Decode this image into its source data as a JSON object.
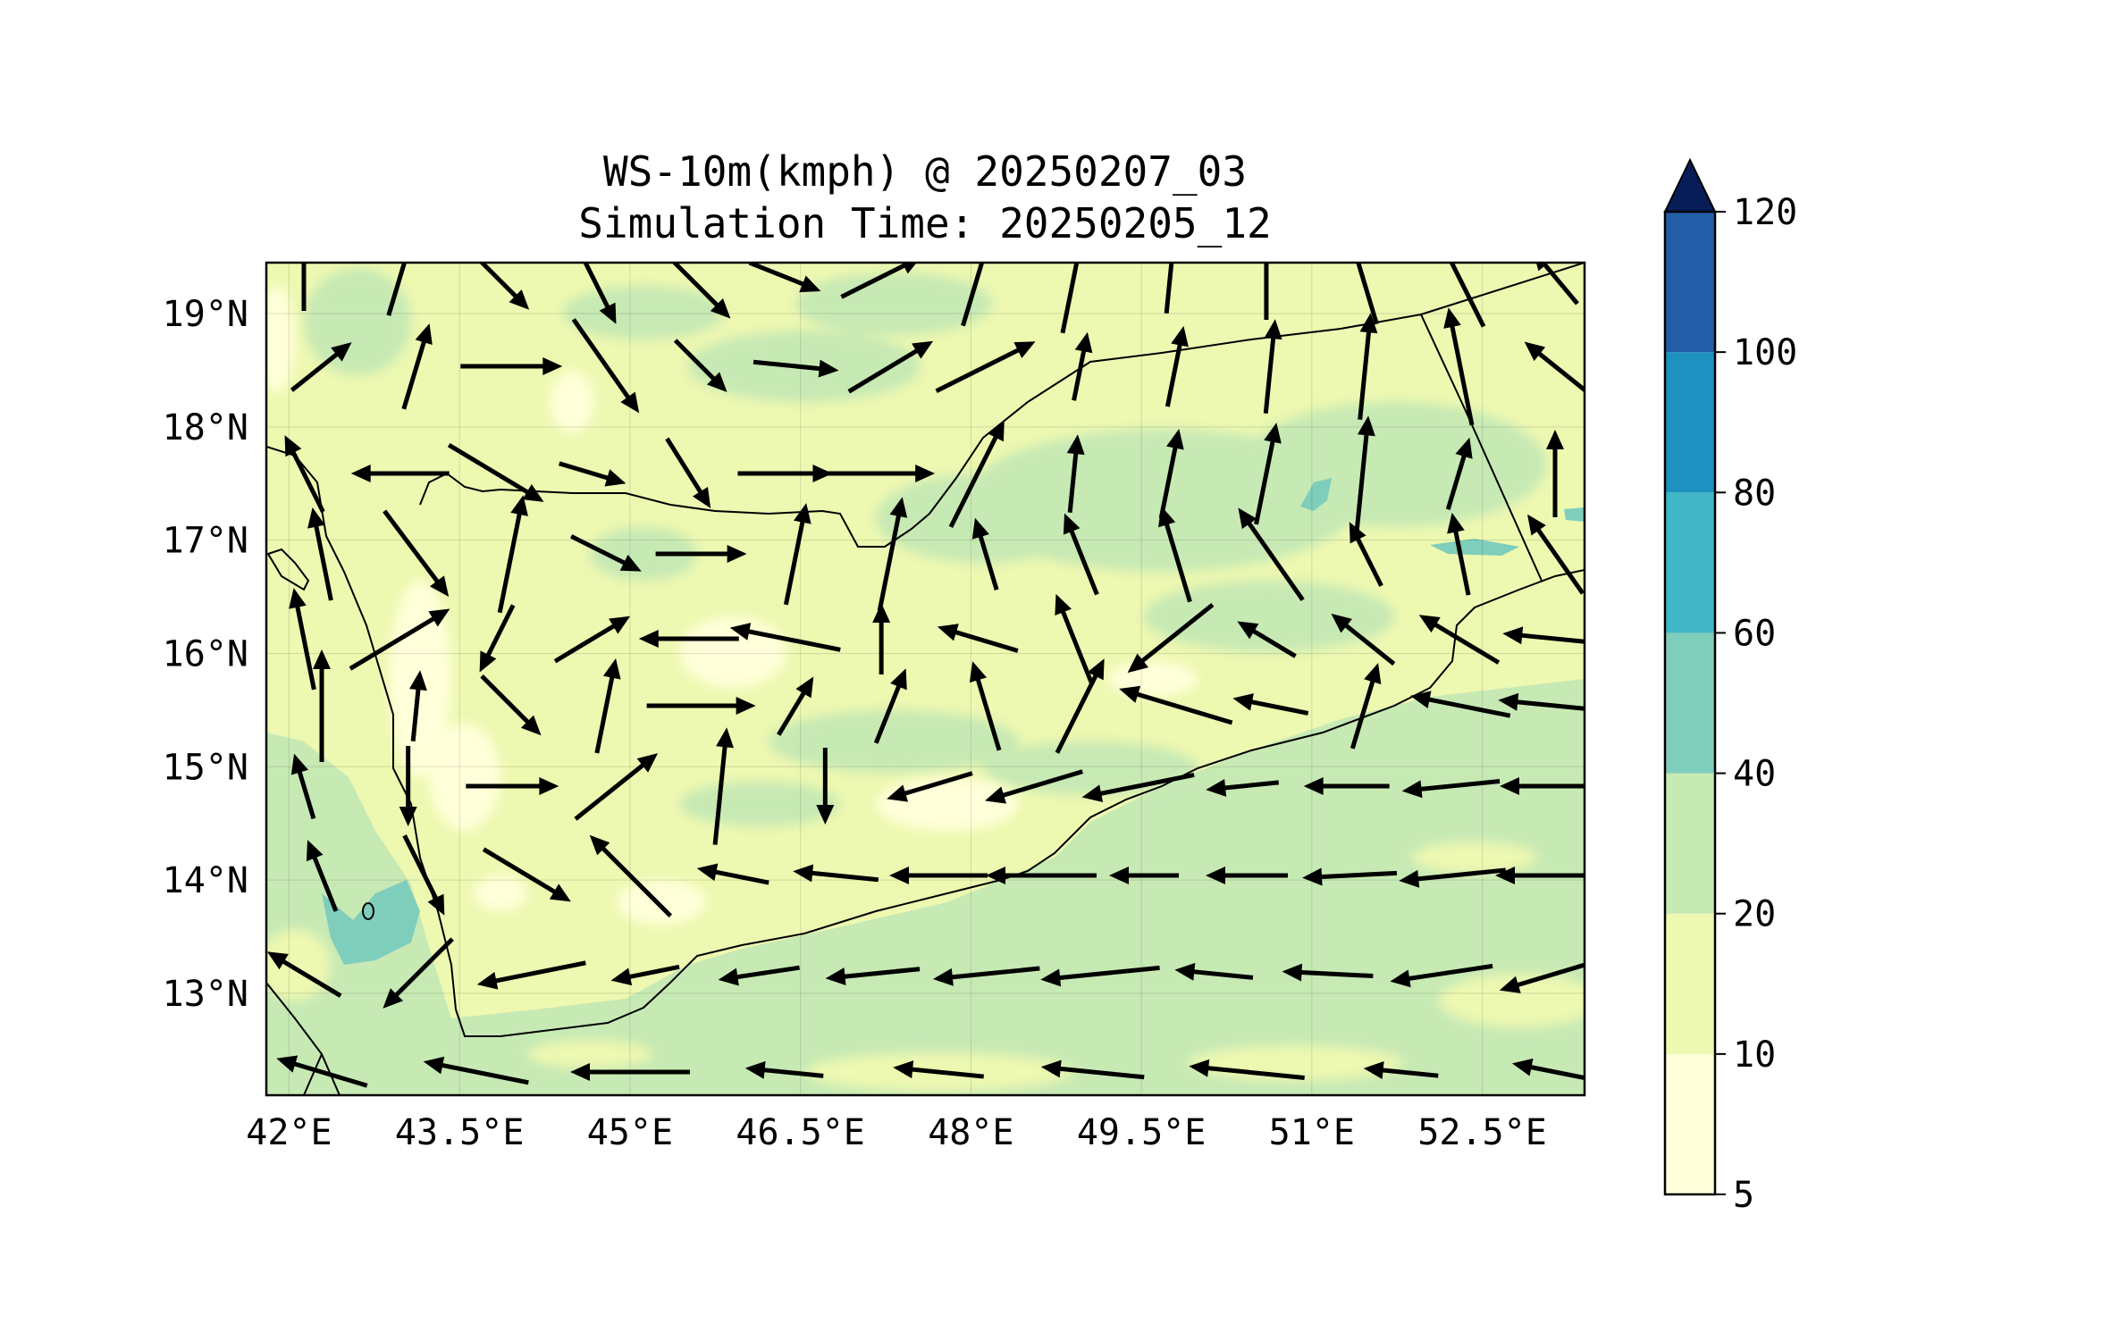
{
  "title": {
    "line1": "WS-10m(kmph) @ 20250207_03",
    "line2": "Simulation Time: 20250205_12"
  },
  "map": {
    "lon_range": [
      41.8,
      53.4
    ],
    "lat_range": [
      12.1,
      19.45
    ],
    "x_ticks": [
      {
        "value": 42.0,
        "label": "42°E"
      },
      {
        "value": 43.5,
        "label": "43.5°E"
      },
      {
        "value": 45.0,
        "label": "45°E"
      },
      {
        "value": 46.5,
        "label": "46.5°E"
      },
      {
        "value": 48.0,
        "label": "48°E"
      },
      {
        "value": 49.5,
        "label": "49.5°E"
      },
      {
        "value": 51.0,
        "label": "51°E"
      },
      {
        "value": 52.5,
        "label": "52.5°E"
      }
    ],
    "y_ticks": [
      {
        "value": 19,
        "label": "19°N"
      },
      {
        "value": 18,
        "label": "18°N"
      },
      {
        "value": 17,
        "label": "17°N"
      },
      {
        "value": 16,
        "label": "16°N"
      },
      {
        "value": 15,
        "label": "15°N"
      },
      {
        "value": 14,
        "label": "14°N"
      },
      {
        "value": 13,
        "label": "13°N"
      }
    ],
    "grid": true
  },
  "colorbar": {
    "levels": [
      5,
      10,
      20,
      40,
      60,
      80,
      100,
      120
    ],
    "labels": [
      "5",
      "10",
      "20",
      "40",
      "60",
      "80",
      "100",
      "120"
    ],
    "colors": [
      "#ffffd9",
      "#edf8b1",
      "#c7e9b4",
      "#7fcdbb",
      "#41b6c4",
      "#1d91c0",
      "#225ea8",
      "#253494"
    ],
    "extend_color": "#081d58",
    "extend": "max"
  },
  "colors": {
    "land_dominant": "#edf8b1",
    "sea_dominant": "#c7e9b4",
    "calm": "#ffffd9",
    "strong": "#7fcdbb",
    "arrow": "#000000",
    "coast": "#000000"
  }
}
